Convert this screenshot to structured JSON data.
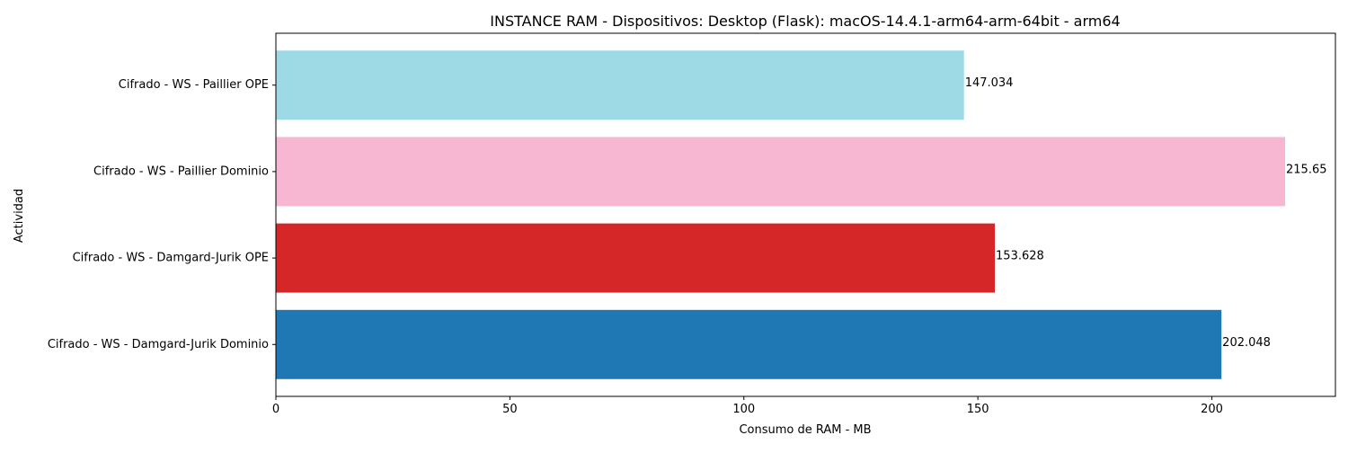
{
  "chart_data": {
    "type": "bar",
    "orientation": "horizontal",
    "title": "INSTANCE RAM - Dispositivos: Desktop (Flask): macOS-14.4.1-arm64-arm-64bit - arm64",
    "xlabel": "Consumo de RAM - MB",
    "ylabel": "Actividad",
    "categories": [
      "Cifrado - WS - Damgard-Jurik Dominio",
      "Cifrado - WS - Damgard-Jurik OPE",
      "Cifrado - WS - Paillier Dominio",
      "Cifrado - WS - Paillier OPE"
    ],
    "values": [
      202.048,
      153.628,
      215.65,
      147.034
    ],
    "value_labels": [
      "202.048",
      "153.628",
      "215.65",
      "147.034"
    ],
    "colors": [
      "#1f77b4",
      "#d62728",
      "#f7b6d2",
      "#9edae5"
    ],
    "xlim": [
      0,
      226.4
    ],
    "xticks": [
      0,
      50,
      100,
      150,
      200
    ],
    "xtick_labels": [
      "0",
      "50",
      "100",
      "150",
      "200"
    ],
    "grid": false,
    "legend": "none"
  }
}
